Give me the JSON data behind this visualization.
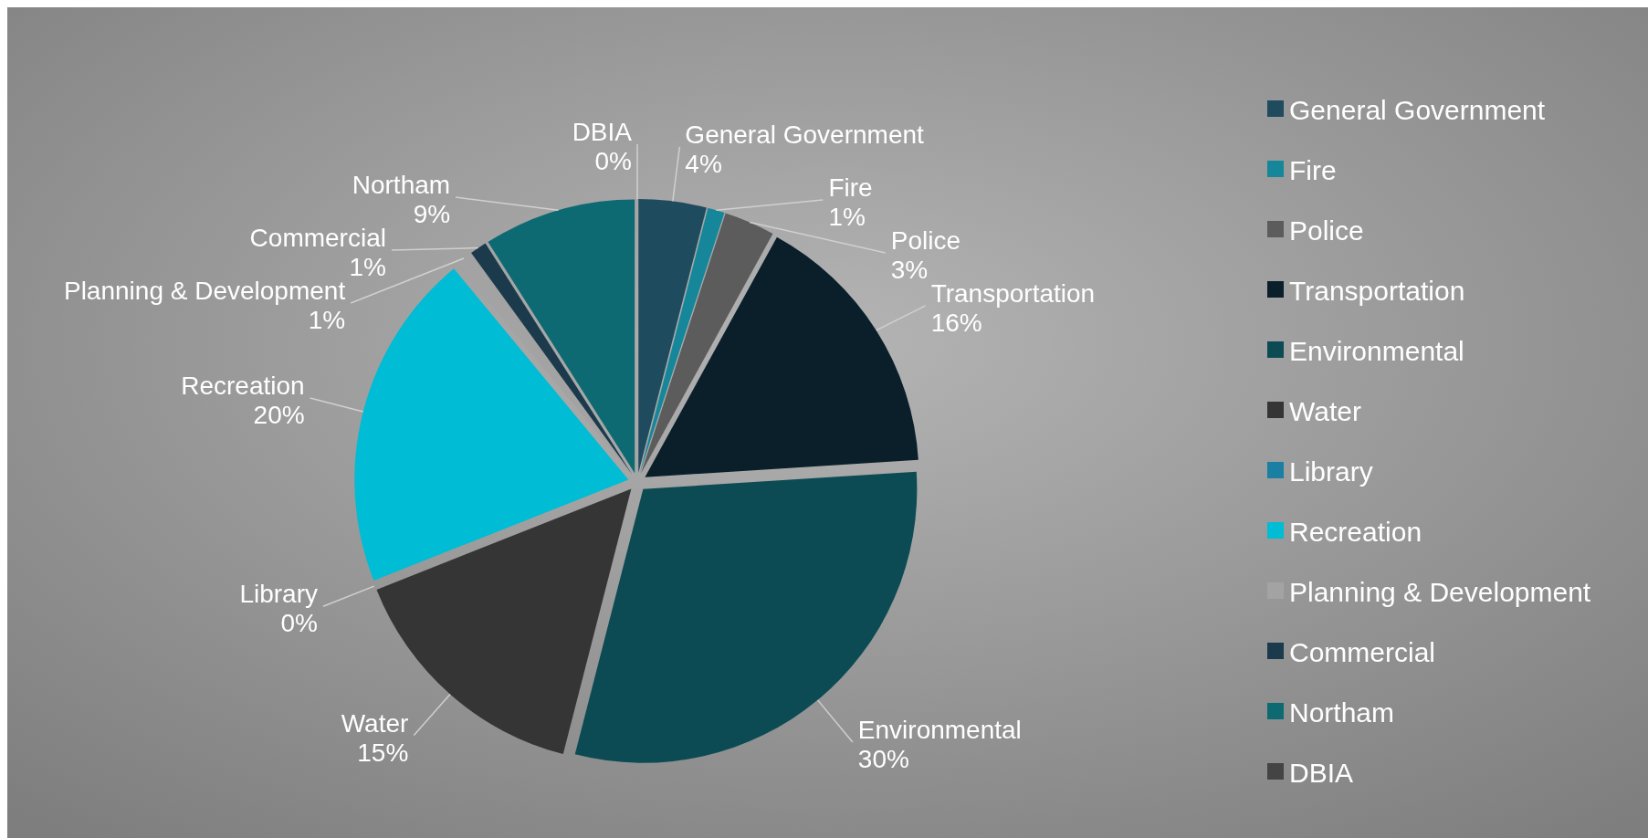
{
  "chart_data": {
    "type": "pie",
    "categories": [
      "General Government",
      "Fire",
      "Police",
      "Transportation",
      "Environmental",
      "Water",
      "Library",
      "Recreation",
      "Planning & Development",
      "Commercial",
      "Northam",
      "DBIA"
    ],
    "values": [
      4,
      1,
      3,
      16,
      30,
      15,
      0,
      20,
      1,
      1,
      9,
      0
    ],
    "value_labels": [
      "4%",
      "1%",
      "3%",
      "16%",
      "30%",
      "15%",
      "0%",
      "20%",
      "1%",
      "1%",
      "9%",
      "0%"
    ],
    "colors": [
      "#1f4b5e",
      "#16879a",
      "#5c5c5c",
      "#0a1f2a",
      "#0d4b54",
      "#353535",
      "#1a7fa3",
      "#00bcd4",
      "#a3a3a3",
      "#1b3a4b",
      "#0e6a72",
      "#444444"
    ],
    "legend": "right"
  }
}
